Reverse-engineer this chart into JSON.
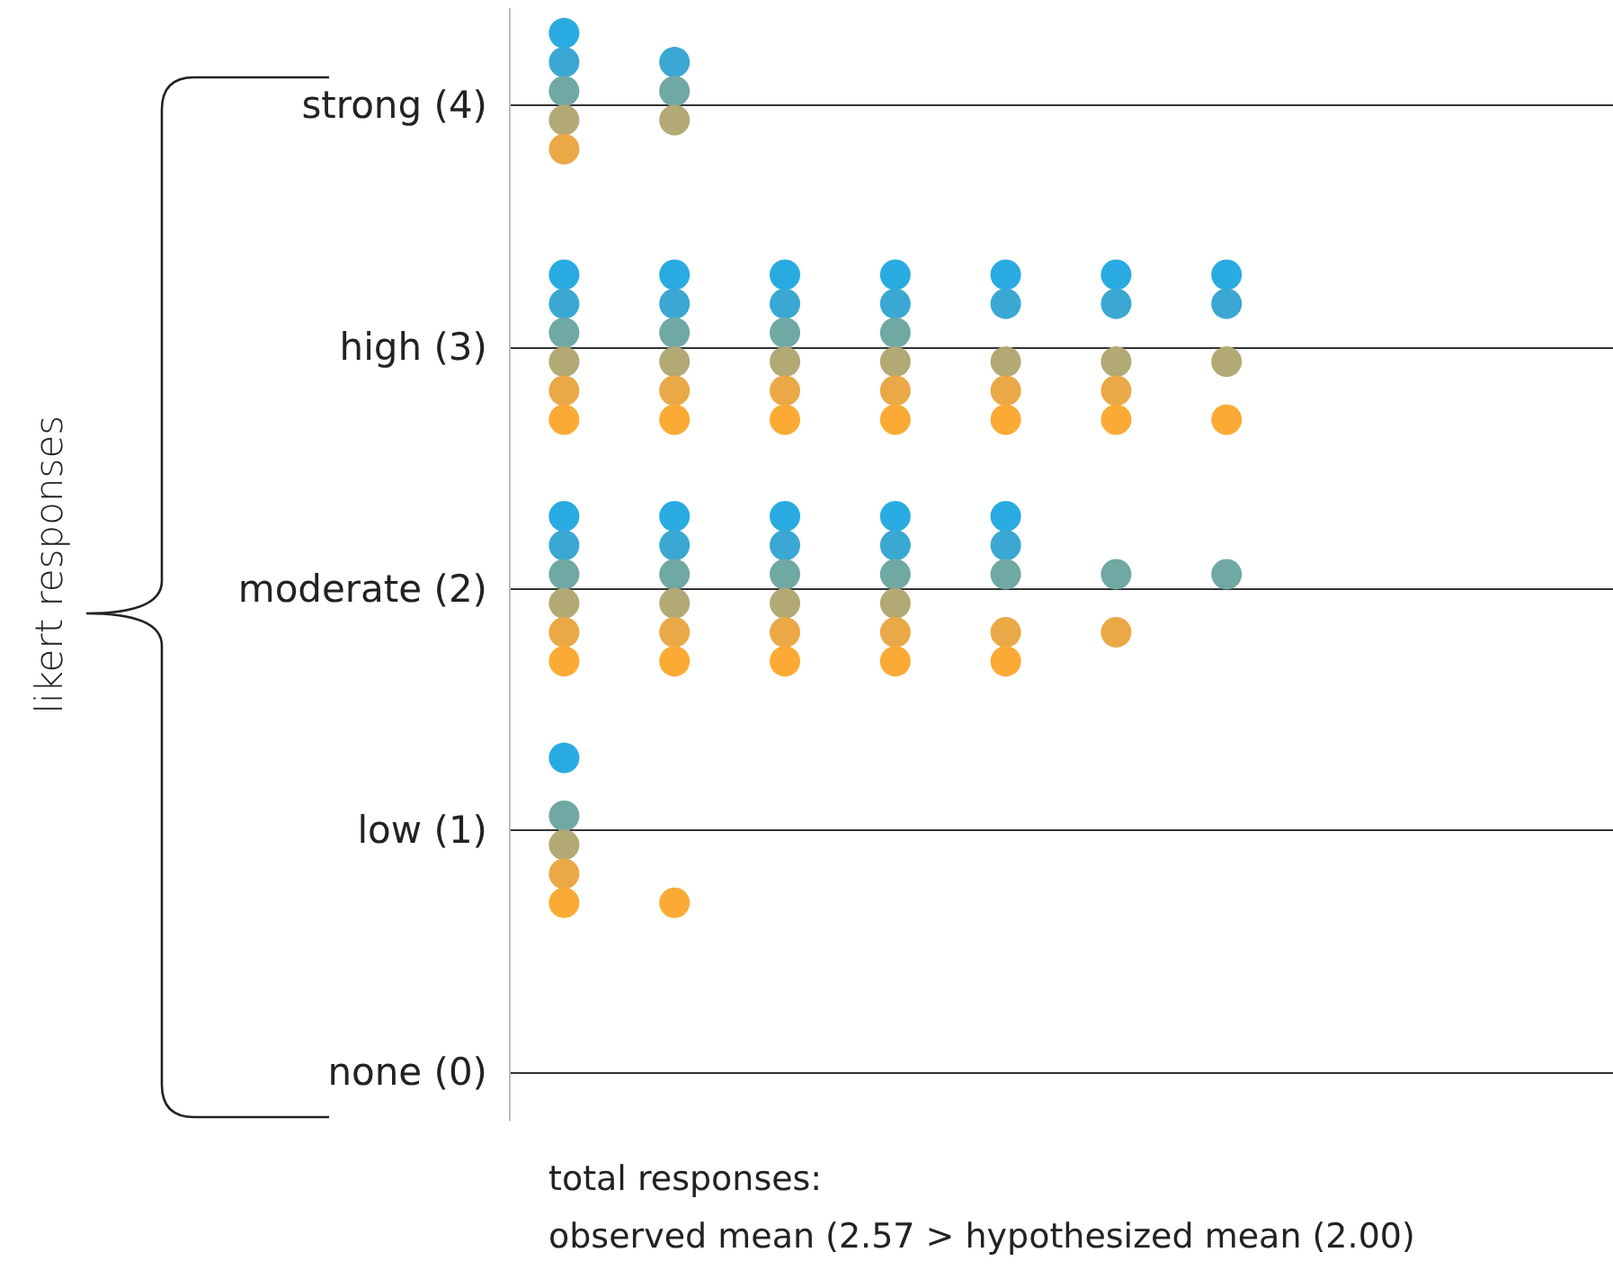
{
  "chart_data": {
    "type": "scatter",
    "ylabel": "likert responses",
    "annotations": [
      "total responses:",
      "observed mean (2.57 > hypothesized mean (2.00)"
    ],
    "categories": [
      null,
      null,
      null,
      null,
      null,
      null,
      null,
      null,
      null,
      null
    ],
    "ylim": [
      -0.2,
      4.4
    ],
    "yticks": [
      {
        "value": 0,
        "label": "none (0)"
      },
      {
        "value": 1,
        "label": "low (1)"
      },
      {
        "value": 2,
        "label": "moderate (2)"
      },
      {
        "value": 3,
        "label": "high (3)"
      },
      {
        "value": 4,
        "label": "strong (4)"
      }
    ],
    "tick_labels": "y",
    "grid": "y",
    "marker": "circle",
    "series": [
      {
        "color": "#29abe2",
        "values": [
          4.3,
          null,
          null,
          null,
          null,
          null,
          null,
          null,
          null,
          null
        ]
      },
      {
        "color": "#3aa8d3",
        "values": [
          4.18,
          4.18,
          null,
          null,
          null,
          null,
          null,
          null,
          null,
          null
        ]
      },
      {
        "color": "#70a8a3",
        "values": [
          4.06,
          4.06,
          null,
          null,
          null,
          null,
          null,
          null,
          null,
          null
        ]
      },
      {
        "color": "#b3a975",
        "values": [
          3.94,
          3.94,
          null,
          null,
          null,
          null,
          null,
          null,
          null,
          null
        ]
      },
      {
        "color": "#eaa847",
        "values": [
          3.82,
          null,
          null,
          null,
          null,
          null,
          null,
          null,
          null,
          null
        ]
      },
      {
        "color": "#29abe2",
        "values": [
          3.3,
          3.3,
          3.3,
          3.3,
          3.3,
          3.3,
          3.3,
          null,
          null,
          null
        ]
      },
      {
        "color": "#3aa8d3",
        "values": [
          3.18,
          3.18,
          3.18,
          3.18,
          3.18,
          3.18,
          3.18,
          null,
          null,
          null
        ]
      },
      {
        "color": "#70a8a3",
        "values": [
          3.06,
          3.06,
          3.06,
          3.06,
          null,
          null,
          null,
          null,
          null,
          null
        ]
      },
      {
        "color": "#b3a975",
        "values": [
          2.94,
          2.94,
          2.94,
          2.94,
          2.94,
          2.94,
          2.94,
          null,
          null,
          null
        ]
      },
      {
        "color": "#eaa847",
        "values": [
          2.82,
          2.82,
          2.82,
          2.82,
          2.82,
          2.82,
          null,
          null,
          null,
          null
        ]
      },
      {
        "color": "#fbab35",
        "values": [
          2.7,
          2.7,
          2.7,
          2.7,
          2.7,
          2.7,
          2.7,
          null,
          null,
          null
        ]
      },
      {
        "color": "#29abe2",
        "values": [
          2.3,
          2.3,
          2.3,
          2.3,
          2.3,
          null,
          null,
          null,
          null,
          null
        ]
      },
      {
        "color": "#3aa8d3",
        "values": [
          2.18,
          2.18,
          2.18,
          2.18,
          2.18,
          null,
          null,
          null,
          null,
          null
        ]
      },
      {
        "color": "#70a8a3",
        "values": [
          2.06,
          2.06,
          2.06,
          2.06,
          2.06,
          2.06,
          2.06,
          null,
          null,
          null
        ]
      },
      {
        "color": "#b3a975",
        "values": [
          1.94,
          1.94,
          1.94,
          1.94,
          null,
          null,
          null,
          null,
          null,
          null
        ]
      },
      {
        "color": "#eaa847",
        "values": [
          1.82,
          1.82,
          1.82,
          1.82,
          1.82,
          1.82,
          null,
          null,
          null,
          null
        ]
      },
      {
        "color": "#fbab35",
        "values": [
          1.7,
          1.7,
          1.7,
          1.7,
          1.7,
          null,
          null,
          null,
          null,
          null
        ]
      },
      {
        "color": "#29abe2",
        "values": [
          1.3,
          null,
          null,
          null,
          null,
          null,
          null,
          null,
          null,
          null
        ]
      },
      {
        "color": "#70a8a3",
        "values": [
          1.06,
          null,
          null,
          null,
          null,
          null,
          null,
          null,
          null,
          null
        ]
      },
      {
        "color": "#b3a975",
        "values": [
          0.94,
          null,
          null,
          null,
          null,
          null,
          null,
          null,
          null,
          null
        ]
      },
      {
        "color": "#eaa847",
        "values": [
          0.82,
          null,
          null,
          null,
          null,
          null,
          null,
          null,
          null,
          null
        ]
      },
      {
        "color": "#fbab35",
        "values": [
          0.7,
          0.7,
          null,
          null,
          null,
          null,
          null,
          null,
          null,
          null
        ]
      }
    ]
  }
}
